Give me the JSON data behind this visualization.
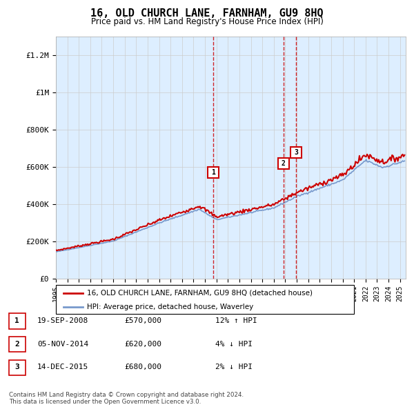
{
  "title": "16, OLD CHURCH LANE, FARNHAM, GU9 8HQ",
  "subtitle": "Price paid vs. HM Land Registry's House Price Index (HPI)",
  "ylim": [
    0,
    1300000
  ],
  "yticks": [
    0,
    200000,
    400000,
    600000,
    800000,
    1000000,
    1200000
  ],
  "ytick_labels": [
    "£0",
    "£200K",
    "£400K",
    "£600K",
    "£800K",
    "£1M",
    "£1.2M"
  ],
  "year_start": 1995,
  "year_end": 2025,
  "red_line_color": "#cc0000",
  "blue_line_color": "#7799cc",
  "vline_color": "#cc0000",
  "grid_color": "#cccccc",
  "bg_color": "#ddeeff",
  "sale_points": [
    {
      "year": 2008.72,
      "price": 570000,
      "label": "1"
    },
    {
      "year": 2014.84,
      "price": 620000,
      "label": "2"
    },
    {
      "year": 2015.95,
      "price": 680000,
      "label": "3"
    }
  ],
  "legend_entries": [
    "16, OLD CHURCH LANE, FARNHAM, GU9 8HQ (detached house)",
    "HPI: Average price, detached house, Waverley"
  ],
  "table_rows": [
    {
      "num": "1",
      "date": "19-SEP-2008",
      "price": "£570,000",
      "change": "12% ↑ HPI"
    },
    {
      "num": "2",
      "date": "05-NOV-2014",
      "price": "£620,000",
      "change": "4% ↓ HPI"
    },
    {
      "num": "3",
      "date": "14-DEC-2015",
      "price": "£680,000",
      "change": "2% ↓ HPI"
    }
  ],
  "footer": "Contains HM Land Registry data © Crown copyright and database right 2024.\nThis data is licensed under the Open Government Licence v3.0."
}
